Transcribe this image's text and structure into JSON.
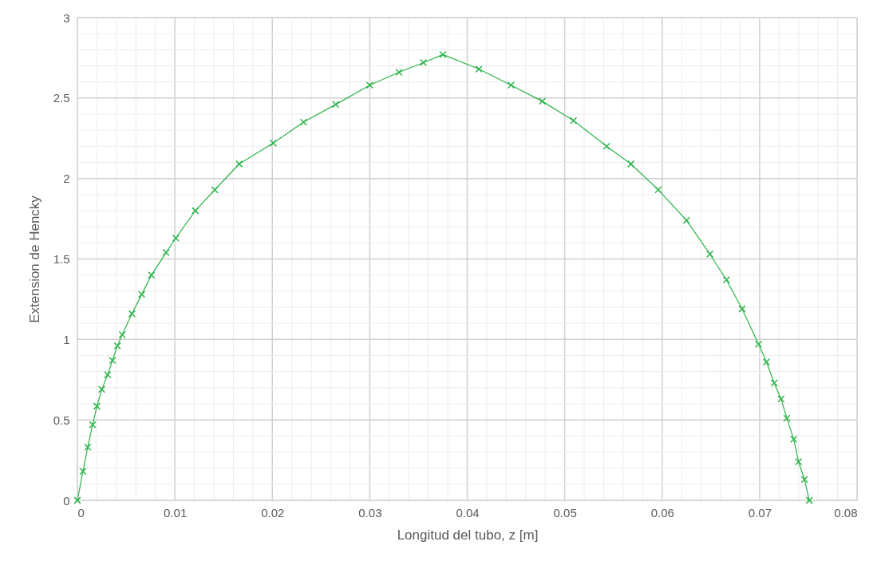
{
  "chart_data": {
    "type": "line",
    "xlabel": "Longitud del tubo, z [m]",
    "ylabel": "Extension de Hencky",
    "x": [
      0,
      0.00057,
      0.00106,
      0.00156,
      0.002,
      0.0025,
      0.0031,
      0.0036,
      0.0041,
      0.0046,
      0.0056,
      0.0066,
      0.0076,
      0.0091,
      0.0101,
      0.0121,
      0.0141,
      0.0166,
      0.0201,
      0.0232,
      0.0265,
      0.03,
      0.033,
      0.0355,
      0.0375,
      0.0412,
      0.0445,
      0.0477,
      0.0509,
      0.0543,
      0.0568,
      0.0596,
      0.0625,
      0.0649,
      0.0666,
      0.0682,
      0.0699,
      0.0707,
      0.0715,
      0.0722,
      0.0728,
      0.0735,
      0.074,
      0.0746,
      0.0751
    ],
    "series": [
      {
        "color": "#2db34a",
        "values": [
          0,
          0.18,
          0.33,
          0.47,
          0.585,
          0.69,
          0.78,
          0.87,
          0.96,
          1.03,
          1.16,
          1.28,
          1.4,
          1.54,
          1.63,
          1.8,
          1.93,
          2.09,
          2.22,
          2.35,
          2.46,
          2.58,
          2.66,
          2.72,
          2.77,
          2.68,
          2.58,
          2.48,
          2.36,
          2.2,
          2.09,
          1.93,
          1.74,
          1.53,
          1.37,
          1.19,
          0.97,
          0.86,
          0.73,
          0.63,
          0.51,
          0.38,
          0.24,
          0.13,
          0
        ]
      }
    ],
    "xlim": [
      0,
      0.08
    ],
    "xticks": [
      0,
      0.01,
      0.02,
      0.03,
      0.04,
      0.05,
      0.06,
      0.07,
      0.08
    ],
    "ylim": [
      0,
      3
    ],
    "yticks": [
      0,
      0.5,
      1,
      1.5,
      2,
      2.5,
      3
    ],
    "grid": true,
    "marker": "cross",
    "line_style": "solid"
  }
}
